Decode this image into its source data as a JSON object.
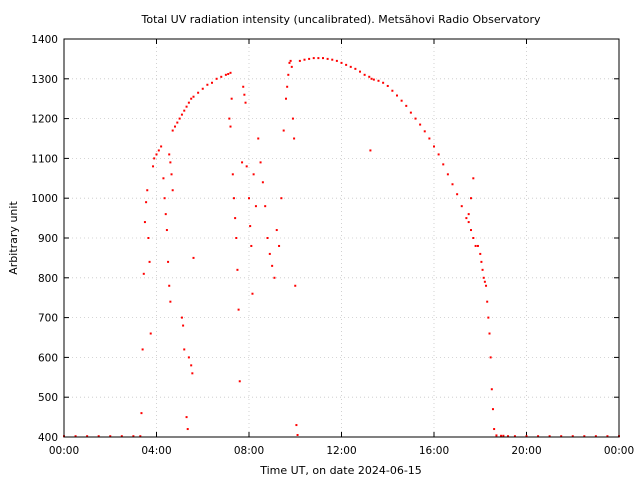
{
  "chart_data": {
    "type": "scatter",
    "title": "Total UV radiation intensity (uncalibrated). Metsähovi Radio Observatory",
    "xlabel": "Time UT, on date 2024-06-15",
    "ylabel": "Arbitrary unit",
    "xlim": [
      0,
      24
    ],
    "ylim": [
      400,
      1400
    ],
    "x_ticks": [
      {
        "value": 0,
        "label": "00:00"
      },
      {
        "value": 4,
        "label": "04:00"
      },
      {
        "value": 8,
        "label": "08:00"
      },
      {
        "value": 12,
        "label": "12:00"
      },
      {
        "value": 16,
        "label": "16:00"
      },
      {
        "value": 20,
        "label": "20:00"
      },
      {
        "value": 24,
        "label": "00:00"
      }
    ],
    "y_ticks": [
      400,
      500,
      600,
      700,
      800,
      900,
      1000,
      1100,
      1200,
      1300,
      1400
    ],
    "grid": true,
    "marker_color": "#ff0000",
    "series": [
      {
        "x": [
          0.0,
          0.5,
          1.0,
          1.5,
          2.0,
          2.5,
          3.0,
          3.3,
          3.35,
          3.4,
          3.45,
          3.5,
          3.55,
          3.6,
          3.65,
          3.7,
          3.75,
          3.85,
          3.9,
          4.0,
          4.1,
          4.2,
          4.3,
          4.35,
          4.4,
          4.45,
          4.5,
          4.55,
          4.6,
          4.7,
          4.8,
          4.9,
          5.0,
          5.1,
          5.2,
          5.3,
          5.4,
          5.5,
          5.6,
          5.8,
          6.0,
          6.2,
          6.4,
          6.6,
          6.8,
          7.0,
          7.1,
          7.2,
          4.55,
          4.6,
          4.65,
          4.7,
          5.1,
          5.15,
          5.2,
          5.3,
          5.35,
          5.4,
          5.5,
          5.55,
          5.6,
          7.15,
          7.2,
          7.25,
          7.3,
          7.35,
          7.4,
          7.45,
          7.5,
          7.55,
          7.6,
          7.7,
          7.75,
          7.8,
          7.85,
          7.9,
          8.0,
          8.05,
          8.1,
          8.15,
          8.2,
          8.3,
          8.4,
          8.5,
          8.6,
          8.7,
          8.8,
          8.9,
          9.0,
          9.1,
          9.2,
          9.3,
          9.4,
          9.5,
          9.6,
          9.65,
          9.7,
          9.75,
          9.8,
          9.85,
          9.9,
          9.95,
          10.0,
          10.05,
          10.1,
          10.2,
          10.4,
          10.6,
          10.8,
          11.0,
          11.2,
          11.4,
          11.6,
          11.8,
          12.0,
          12.2,
          12.4,
          12.6,
          12.8,
          13.0,
          13.2,
          13.3,
          13.4,
          13.6,
          13.8,
          14.0,
          14.2,
          14.4,
          14.6,
          14.8,
          15.0,
          15.2,
          15.4,
          15.6,
          15.8,
          16.0,
          16.2,
          16.4,
          16.6,
          16.8,
          17.0,
          17.2,
          17.4,
          17.5,
          17.6,
          17.7,
          17.8,
          13.25,
          17.5,
          17.6,
          17.7,
          17.9,
          18.0,
          18.05,
          18.1,
          18.15,
          18.2,
          18.25,
          18.3,
          18.35,
          18.4,
          18.45,
          18.5,
          18.55,
          18.6,
          18.7,
          18.9,
          19.0,
          19.2,
          19.5,
          20.0,
          20.5,
          21.0,
          21.5,
          22.0,
          22.5,
          23.0,
          23.5,
          24.0
        ],
        "y": [
          402,
          402,
          402,
          402,
          402,
          402,
          402,
          402,
          460,
          620,
          810,
          940,
          990,
          1020,
          900,
          840,
          660,
          1080,
          1100,
          1110,
          1120,
          1130,
          1050,
          1000,
          960,
          920,
          840,
          780,
          740,
          1170,
          1180,
          1190,
          1200,
          1210,
          1220,
          1230,
          1240,
          1250,
          1255,
          1265,
          1275,
          1285,
          1290,
          1300,
          1305,
          1310,
          1312,
          1315,
          1110,
          1090,
          1060,
          1020,
          700,
          680,
          620,
          450,
          420,
          600,
          580,
          560,
          850,
          1200,
          1180,
          1250,
          1060,
          1000,
          950,
          900,
          820,
          720,
          540,
          1090,
          1280,
          1260,
          1240,
          1080,
          1000,
          930,
          880,
          760,
          1060,
          980,
          1150,
          1090,
          1040,
          980,
          900,
          860,
          830,
          800,
          920,
          880,
          1000,
          1170,
          1250,
          1280,
          1310,
          1340,
          1345,
          1330,
          1200,
          1150,
          780,
          430,
          405,
          1345,
          1348,
          1350,
          1352,
          1352,
          1352,
          1350,
          1348,
          1345,
          1340,
          1335,
          1330,
          1325,
          1318,
          1310,
          1305,
          1300,
          1298,
          1295,
          1290,
          1282,
          1270,
          1258,
          1245,
          1232,
          1215,
          1200,
          1185,
          1168,
          1150,
          1130,
          1110,
          1085,
          1060,
          1035,
          1010,
          980,
          950,
          940,
          920,
          900,
          880,
          1120,
          960,
          1000,
          1050,
          880,
          860,
          840,
          820,
          800,
          790,
          780,
          740,
          700,
          660,
          600,
          520,
          470,
          420,
          404,
          403,
          403,
          402,
          402,
          402,
          402,
          402,
          402,
          402,
          402,
          402,
          402,
          402
        ]
      }
    ]
  }
}
